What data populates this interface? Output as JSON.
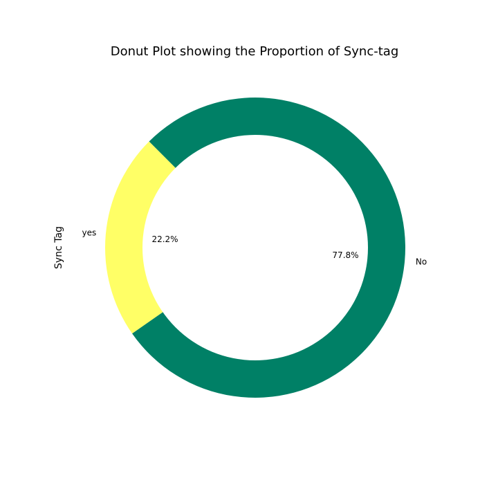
{
  "chart_data": {
    "type": "pie",
    "variant": "donut",
    "title": "Donut Plot showing the Proportion of Sync-tag",
    "ylabel": "Sync Tag",
    "slices": [
      {
        "label": "yes",
        "percent": 22.2,
        "pct_label": "22.2%",
        "color": "#ffff66"
      },
      {
        "label": "No",
        "percent": 77.8,
        "pct_label": "77.8%",
        "color": "#008066"
      }
    ]
  }
}
